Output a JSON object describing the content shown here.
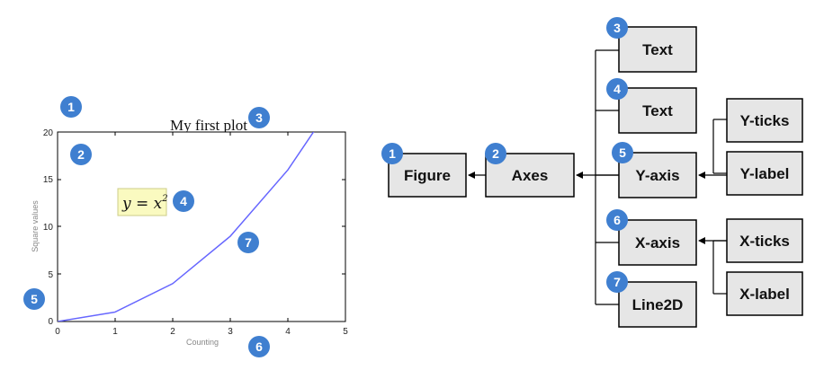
{
  "plot": {
    "title": "My first plot",
    "xlabel": "Counting",
    "ylabel": "Square values",
    "annotation": "y = x²",
    "annotation_base": "y = x",
    "annotation_exp": "2",
    "x_ticks": [
      "0",
      "1",
      "2",
      "3",
      "4",
      "5"
    ],
    "y_ticks": [
      "0",
      "5",
      "10",
      "15",
      "20"
    ],
    "markers": [
      "1",
      "2",
      "3",
      "4",
      "5",
      "6",
      "7"
    ]
  },
  "chart_data": {
    "type": "line",
    "title": "My first plot",
    "xlabel": "Counting",
    "ylabel": "Square values",
    "xlim": [
      0,
      5
    ],
    "ylim": [
      0,
      20
    ],
    "x": [
      0,
      1,
      2,
      3,
      4,
      5
    ],
    "series": [
      {
        "values": [
          0,
          1,
          4,
          9,
          16,
          25
        ],
        "color": "#6666ff"
      }
    ],
    "annotations": [
      {
        "text": "y = x²",
        "x": 1.5,
        "y": 12.5
      }
    ],
    "grid": false
  },
  "diagram": {
    "nodes": {
      "figure": "Figure",
      "axes": "Axes",
      "text1": "Text",
      "text2": "Text",
      "yaxis": "Y-axis",
      "xaxis": "X-axis",
      "line2d": "Line2D",
      "yticks": "Y-ticks",
      "ylabel": "Y-label",
      "xticks": "X-ticks",
      "xlabel": "X-label"
    },
    "badges": {
      "figure": "1",
      "axes": "2",
      "text1": "3",
      "text2": "4",
      "yaxis": "5",
      "xaxis": "6",
      "line2d": "7"
    }
  },
  "colors": {
    "badge": "#3f7fd0",
    "box_fill": "#e6e6e6",
    "line": "#6666ff",
    "annotation_fill": "#fafac0"
  }
}
